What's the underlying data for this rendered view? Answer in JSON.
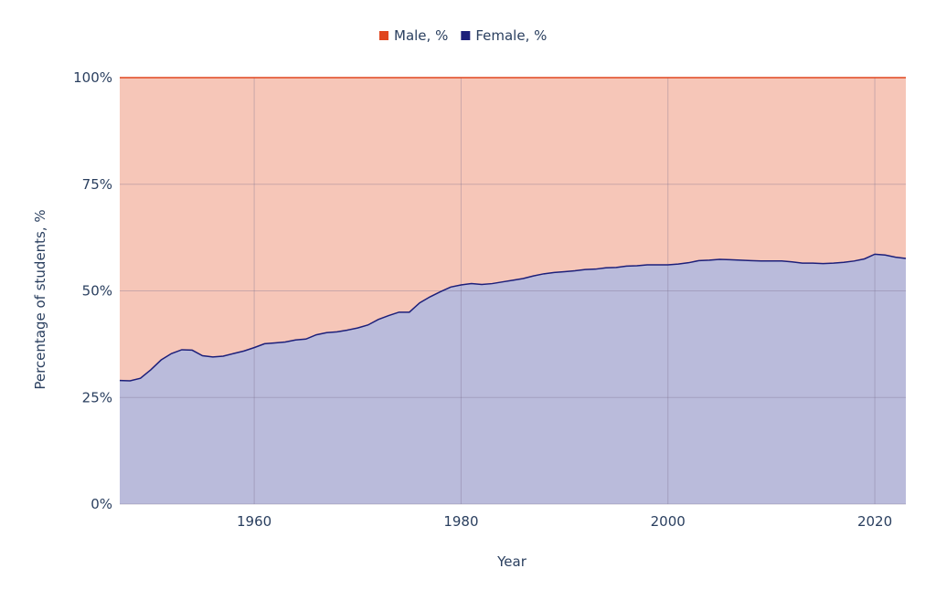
{
  "chart_data": {
    "type": "area",
    "stacked": true,
    "normalized": true,
    "xlabel": "Year",
    "ylabel": "Percentage of students, %",
    "xlim": [
      1947,
      2023
    ],
    "ylim": [
      0,
      100
    ],
    "x_ticks": [
      1960,
      1980,
      2000,
      2020
    ],
    "x_tick_labels": [
      "1960",
      "1980",
      "2000",
      "2020"
    ],
    "y_ticks": [
      0,
      25,
      50,
      75,
      100
    ],
    "y_tick_labels": [
      "0%",
      "25%",
      "50%",
      "75%",
      "100%"
    ],
    "grid": true,
    "legend": {
      "placement": "top-center",
      "orientation": "horizontal"
    },
    "x": [
      1947,
      1948,
      1949,
      1950,
      1951,
      1952,
      1953,
      1954,
      1955,
      1956,
      1957,
      1958,
      1959,
      1960,
      1961,
      1962,
      1963,
      1964,
      1965,
      1966,
      1967,
      1968,
      1969,
      1970,
      1971,
      1972,
      1973,
      1974,
      1975,
      1976,
      1977,
      1978,
      1979,
      1980,
      1981,
      1982,
      1983,
      1984,
      1985,
      1986,
      1987,
      1988,
      1989,
      1990,
      1991,
      1992,
      1993,
      1994,
      1995,
      1996,
      1997,
      1998,
      1999,
      2000,
      2001,
      2002,
      2003,
      2004,
      2005,
      2006,
      2007,
      2008,
      2009,
      2010,
      2011,
      2012,
      2013,
      2014,
      2015,
      2016,
      2017,
      2018,
      2019,
      2020,
      2021,
      2022,
      2023
    ],
    "series": [
      {
        "name": "Female, %",
        "color": "#1c1f7a",
        "fill": "#babbdb",
        "values": [
          29.0,
          28.9,
          29.5,
          31.5,
          33.8,
          35.3,
          36.2,
          36.1,
          34.8,
          34.5,
          34.7,
          35.3,
          35.9,
          36.7,
          37.6,
          37.8,
          38.0,
          38.5,
          38.7,
          39.7,
          40.2,
          40.4,
          40.8,
          41.3,
          42.0,
          43.3,
          44.2,
          45.0,
          45.0,
          47.2,
          48.6,
          49.8,
          50.9,
          51.4,
          51.7,
          51.5,
          51.7,
          52.1,
          52.5,
          52.9,
          53.5,
          54.0,
          54.3,
          54.5,
          54.7,
          55.0,
          55.1,
          55.4,
          55.5,
          55.8,
          55.9,
          56.1,
          56.1,
          56.1,
          56.3,
          56.6,
          57.1,
          57.2,
          57.4,
          57.3,
          57.2,
          57.1,
          57.0,
          57.0,
          57.0,
          56.8,
          56.5,
          56.5,
          56.4,
          56.5,
          56.7,
          57.0,
          57.5,
          58.6,
          58.4,
          57.9,
          57.6
        ]
      },
      {
        "name": "Male, %",
        "color": "#e0461f",
        "fill": "#f6c6b8",
        "values": [
          71.0,
          71.1,
          70.5,
          68.5,
          66.2,
          64.7,
          63.8,
          63.9,
          65.2,
          65.5,
          65.3,
          64.7,
          64.1,
          63.3,
          62.4,
          62.2,
          62.0,
          61.5,
          61.3,
          60.3,
          59.8,
          59.6,
          59.2,
          58.7,
          58.0,
          56.7,
          55.8,
          55.0,
          55.0,
          52.8,
          51.4,
          50.2,
          49.1,
          48.6,
          48.3,
          48.5,
          48.3,
          47.9,
          47.5,
          47.1,
          46.5,
          46.0,
          45.7,
          45.5,
          45.3,
          45.0,
          44.9,
          44.6,
          44.5,
          44.2,
          44.1,
          43.9,
          43.9,
          43.9,
          43.7,
          43.4,
          42.9,
          42.8,
          42.6,
          42.7,
          42.8,
          42.9,
          43.0,
          43.0,
          43.0,
          43.2,
          43.5,
          43.5,
          43.6,
          43.5,
          43.3,
          43.0,
          42.5,
          41.4,
          41.6,
          42.1,
          42.4
        ]
      }
    ],
    "legend_order": [
      "Male, %",
      "Female, %"
    ]
  }
}
